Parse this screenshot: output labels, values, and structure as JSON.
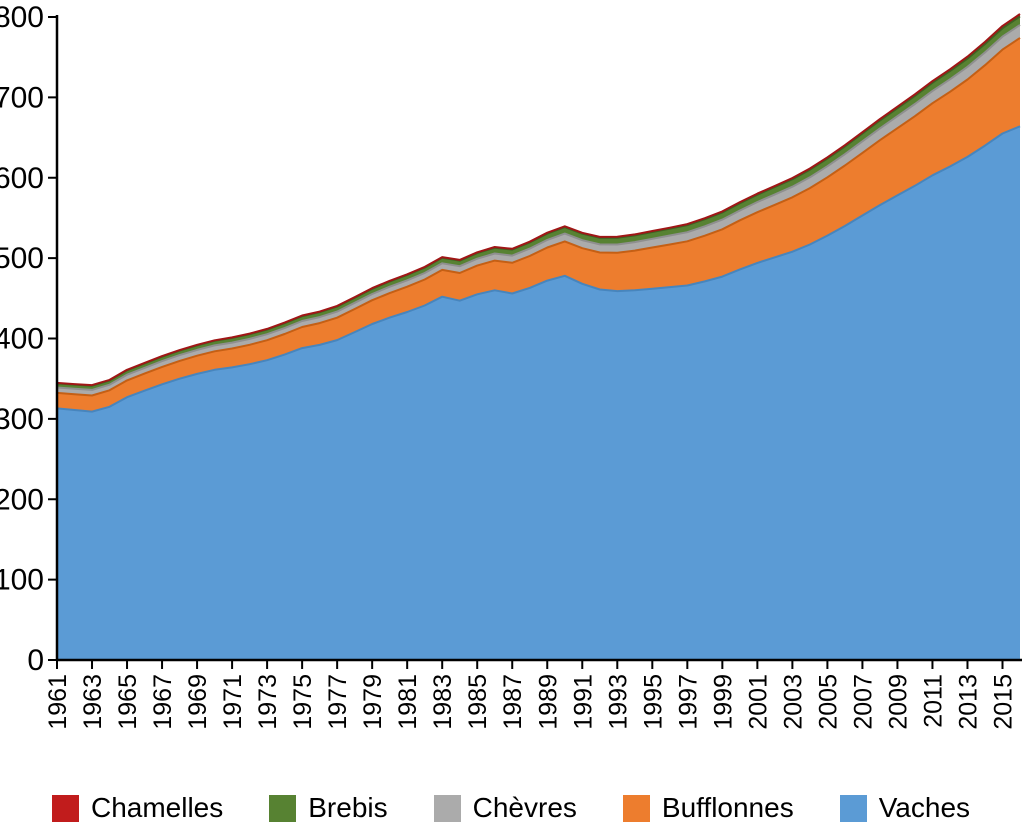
{
  "chart_data": {
    "type": "area",
    "stacked": true,
    "title": "",
    "xlabel": "",
    "ylabel": "",
    "ylim": [
      0,
      800
    ],
    "yticks": [
      0,
      100,
      200,
      300,
      400,
      500,
      600,
      700,
      800
    ],
    "xtick_years": [
      1961,
      1963,
      1965,
      1967,
      1969,
      1971,
      1973,
      1975,
      1977,
      1979,
      1981,
      1983,
      1985,
      1987,
      1989,
      1991,
      1993,
      1995,
      1997,
      1999,
      2001,
      2003,
      2005,
      2007,
      2009,
      2011,
      2013,
      2015
    ],
    "grid": false,
    "legend_position": "bottom",
    "legend_order": [
      "Chamelles",
      "Brebis",
      "Chèvres",
      "Bufflonnes",
      "Vaches"
    ],
    "stack_bottom_to_top": [
      "Vaches",
      "Bufflonnes",
      "Chèvres",
      "Brebis",
      "Chamelles"
    ],
    "x": [
      1961,
      1962,
      1963,
      1964,
      1965,
      1966,
      1967,
      1968,
      1969,
      1970,
      1971,
      1972,
      1973,
      1974,
      1975,
      1976,
      1977,
      1978,
      1979,
      1980,
      1981,
      1982,
      1983,
      1984,
      1985,
      1986,
      1987,
      1988,
      1989,
      1990,
      1991,
      1992,
      1993,
      1994,
      1995,
      1996,
      1997,
      1998,
      1999,
      2000,
      2001,
      2002,
      2003,
      2004,
      2005,
      2006,
      2007,
      2008,
      2009,
      2010,
      2011,
      2012,
      2013,
      2014,
      2015,
      2016
    ],
    "series": [
      {
        "name": "Chamelles",
        "color": "#c11c1c",
        "edge": "#a01616",
        "values": [
          0.6,
          0.6,
          0.7,
          0.7,
          0.7,
          0.7,
          0.7,
          0.7,
          0.7,
          0.7,
          0.7,
          0.8,
          0.8,
          0.8,
          0.8,
          0.8,
          0.8,
          0.8,
          0.9,
          0.9,
          0.9,
          0.9,
          0.9,
          1,
          1,
          1,
          1,
          1,
          1.1,
          1.1,
          1.1,
          1.1,
          1.2,
          1.2,
          1.2,
          1.2,
          1.3,
          1.3,
          1.3,
          1.4,
          1.4,
          1.4,
          1.5,
          1.5,
          1.6,
          1.6,
          1.7,
          1.8,
          1.9,
          2,
          2.1,
          2.2,
          2.4,
          2.6,
          2.8,
          2.9
        ]
      },
      {
        "name": "Brebis",
        "color": "#578232",
        "edge": "#3f6123",
        "values": [
          5.1,
          5.2,
          5.3,
          5.3,
          5.4,
          5.5,
          5.5,
          5.6,
          5.6,
          5.7,
          5.8,
          5.8,
          5.9,
          6,
          6,
          6.1,
          6.2,
          6.3,
          6.4,
          6.5,
          6.6,
          6.7,
          6.8,
          6.9,
          7,
          7.2,
          7.4,
          7.6,
          7.8,
          8,
          8.1,
          8.2,
          8.3,
          8.4,
          8.5,
          8.6,
          8.7,
          8.8,
          8.9,
          9,
          9.1,
          9.2,
          9.3,
          9.4,
          9.5,
          9.6,
          9.7,
          9.8,
          9.9,
          10,
          10.1,
          10.2,
          10.3,
          10.4,
          10.5,
          10.6
        ]
      },
      {
        "name": "Chèvres",
        "color": "#ababab",
        "edge": "#8f8f8f",
        "values": [
          6.7,
          6.8,
          6.9,
          7,
          7.1,
          7.1,
          7.2,
          7.2,
          7.2,
          7.3,
          7.3,
          7.3,
          7.4,
          7.4,
          7.5,
          7.5,
          7.6,
          7.7,
          7.8,
          7.9,
          8,
          8.1,
          8.2,
          8.4,
          8.6,
          8.8,
          9,
          9.2,
          9.5,
          9.7,
          9.9,
          10.1,
          10.3,
          10.5,
          10.8,
          11.1,
          11.4,
          11.7,
          12,
          12.3,
          12.6,
          12.9,
          13.2,
          13.5,
          13.8,
          14.1,
          14.4,
          14.7,
          15,
          15.2,
          15.4,
          15.6,
          15.8,
          16,
          16.1,
          16.2
        ]
      },
      {
        "name": "Bufflonnes",
        "color": "#ed7d2e",
        "edge": "#c55f14",
        "values": [
          19.3,
          19.7,
          20.1,
          20.5,
          20.9,
          21.3,
          21.7,
          22.1,
          22.6,
          23.1,
          23.6,
          24.2,
          24.9,
          25.6,
          26.3,
          27.1,
          27.9,
          28.7,
          29.6,
          30.5,
          31.4,
          32.4,
          33.4,
          34.5,
          35.7,
          36.9,
          38.2,
          39.6,
          41.2,
          42.8,
          44.4,
          46,
          47.7,
          49.4,
          51.2,
          53,
          54.9,
          56.9,
          58.9,
          61,
          63.2,
          65.4,
          67.7,
          70.1,
          72.6,
          75.2,
          77.9,
          80.7,
          83.6,
          86.6,
          89.7,
          92.9,
          96.2,
          100,
          104.5,
          110
        ]
      },
      {
        "name": "Vaches",
        "color": "#5b9bd5",
        "edge": "#4785bd",
        "values": [
          313,
          311,
          309,
          315,
          327,
          335,
          343,
          350,
          356,
          361,
          364,
          368,
          373,
          380,
          388,
          392,
          398,
          408,
          418,
          426,
          433,
          441,
          452,
          447,
          455,
          460,
          456,
          463,
          472,
          478,
          468,
          461,
          459,
          460,
          462,
          464,
          466,
          471,
          477,
          486,
          494,
          501,
          508,
          517,
          528,
          540,
          553,
          566,
          578,
          590,
          603,
          614,
          626,
          640,
          655,
          664
        ]
      }
    ]
  },
  "axes": {
    "y_axis_color": "#000000",
    "x_axis_color": "#000000",
    "tick_color": "#000000",
    "label_color": "#000000"
  }
}
